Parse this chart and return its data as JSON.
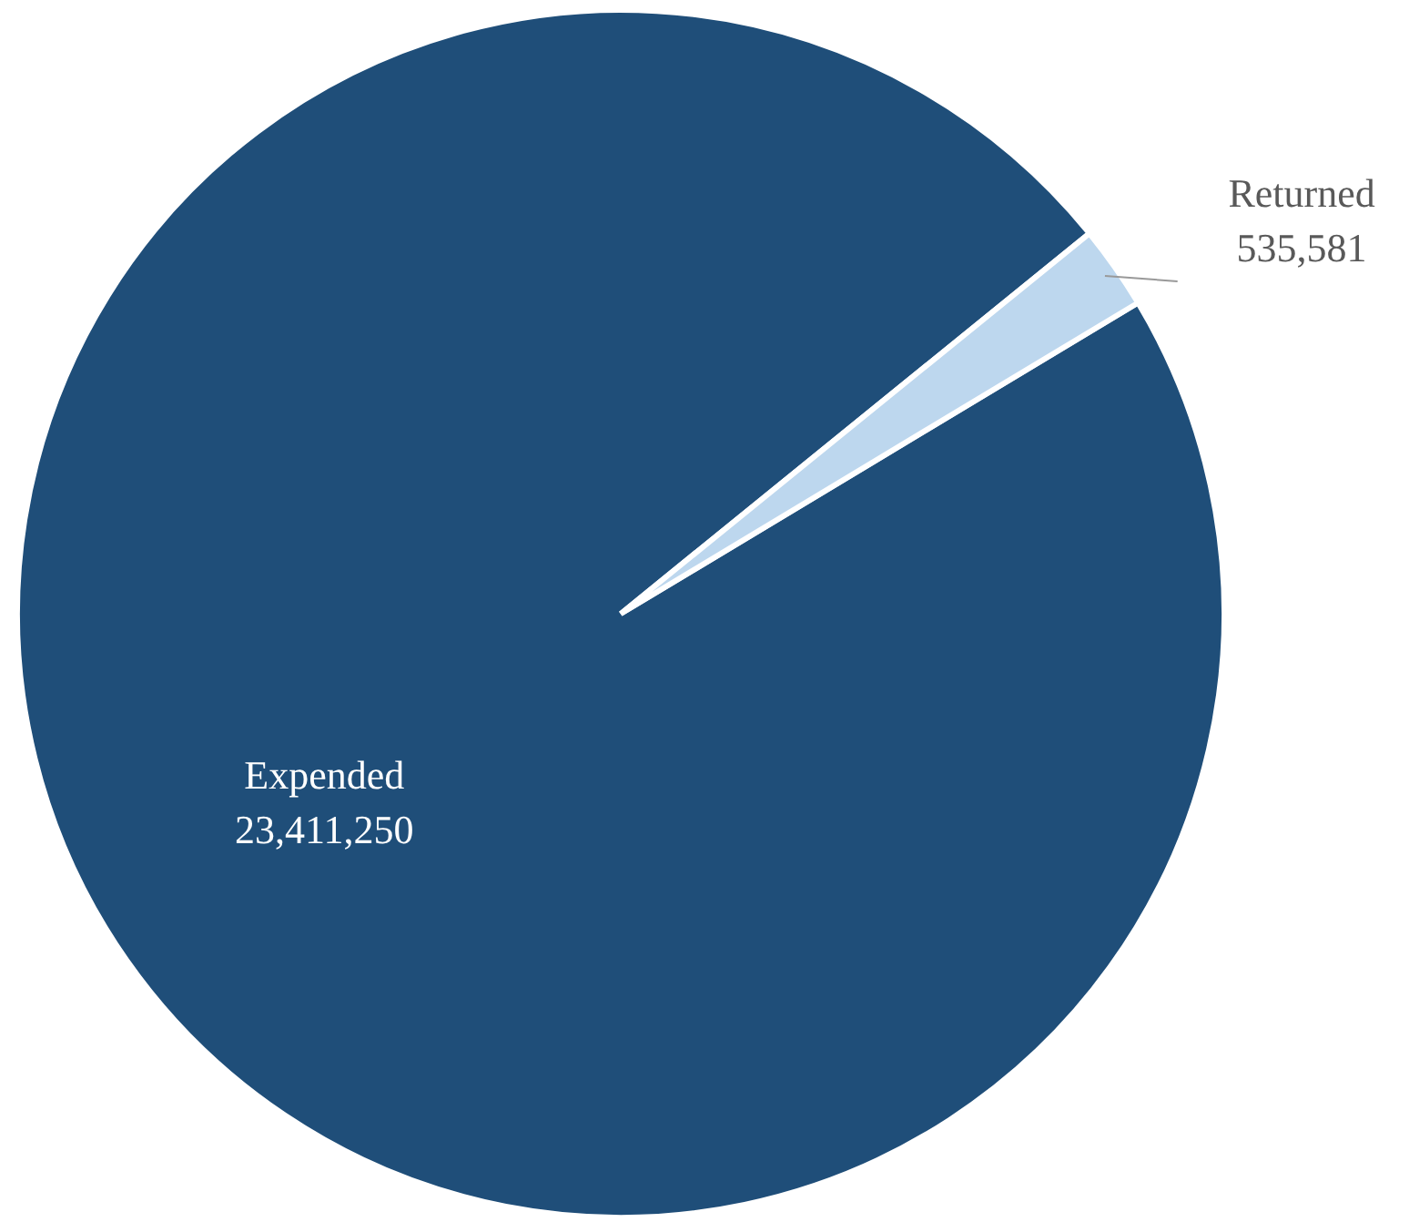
{
  "chart_data": {
    "type": "pie",
    "categories": [
      "Expended",
      "Returned"
    ],
    "values": [
      23411250,
      535581
    ],
    "colors": [
      "#1f4e79",
      "#bdd7ee"
    ],
    "value_labels": [
      "23,411,250",
      "535,581"
    ],
    "legend": false
  }
}
